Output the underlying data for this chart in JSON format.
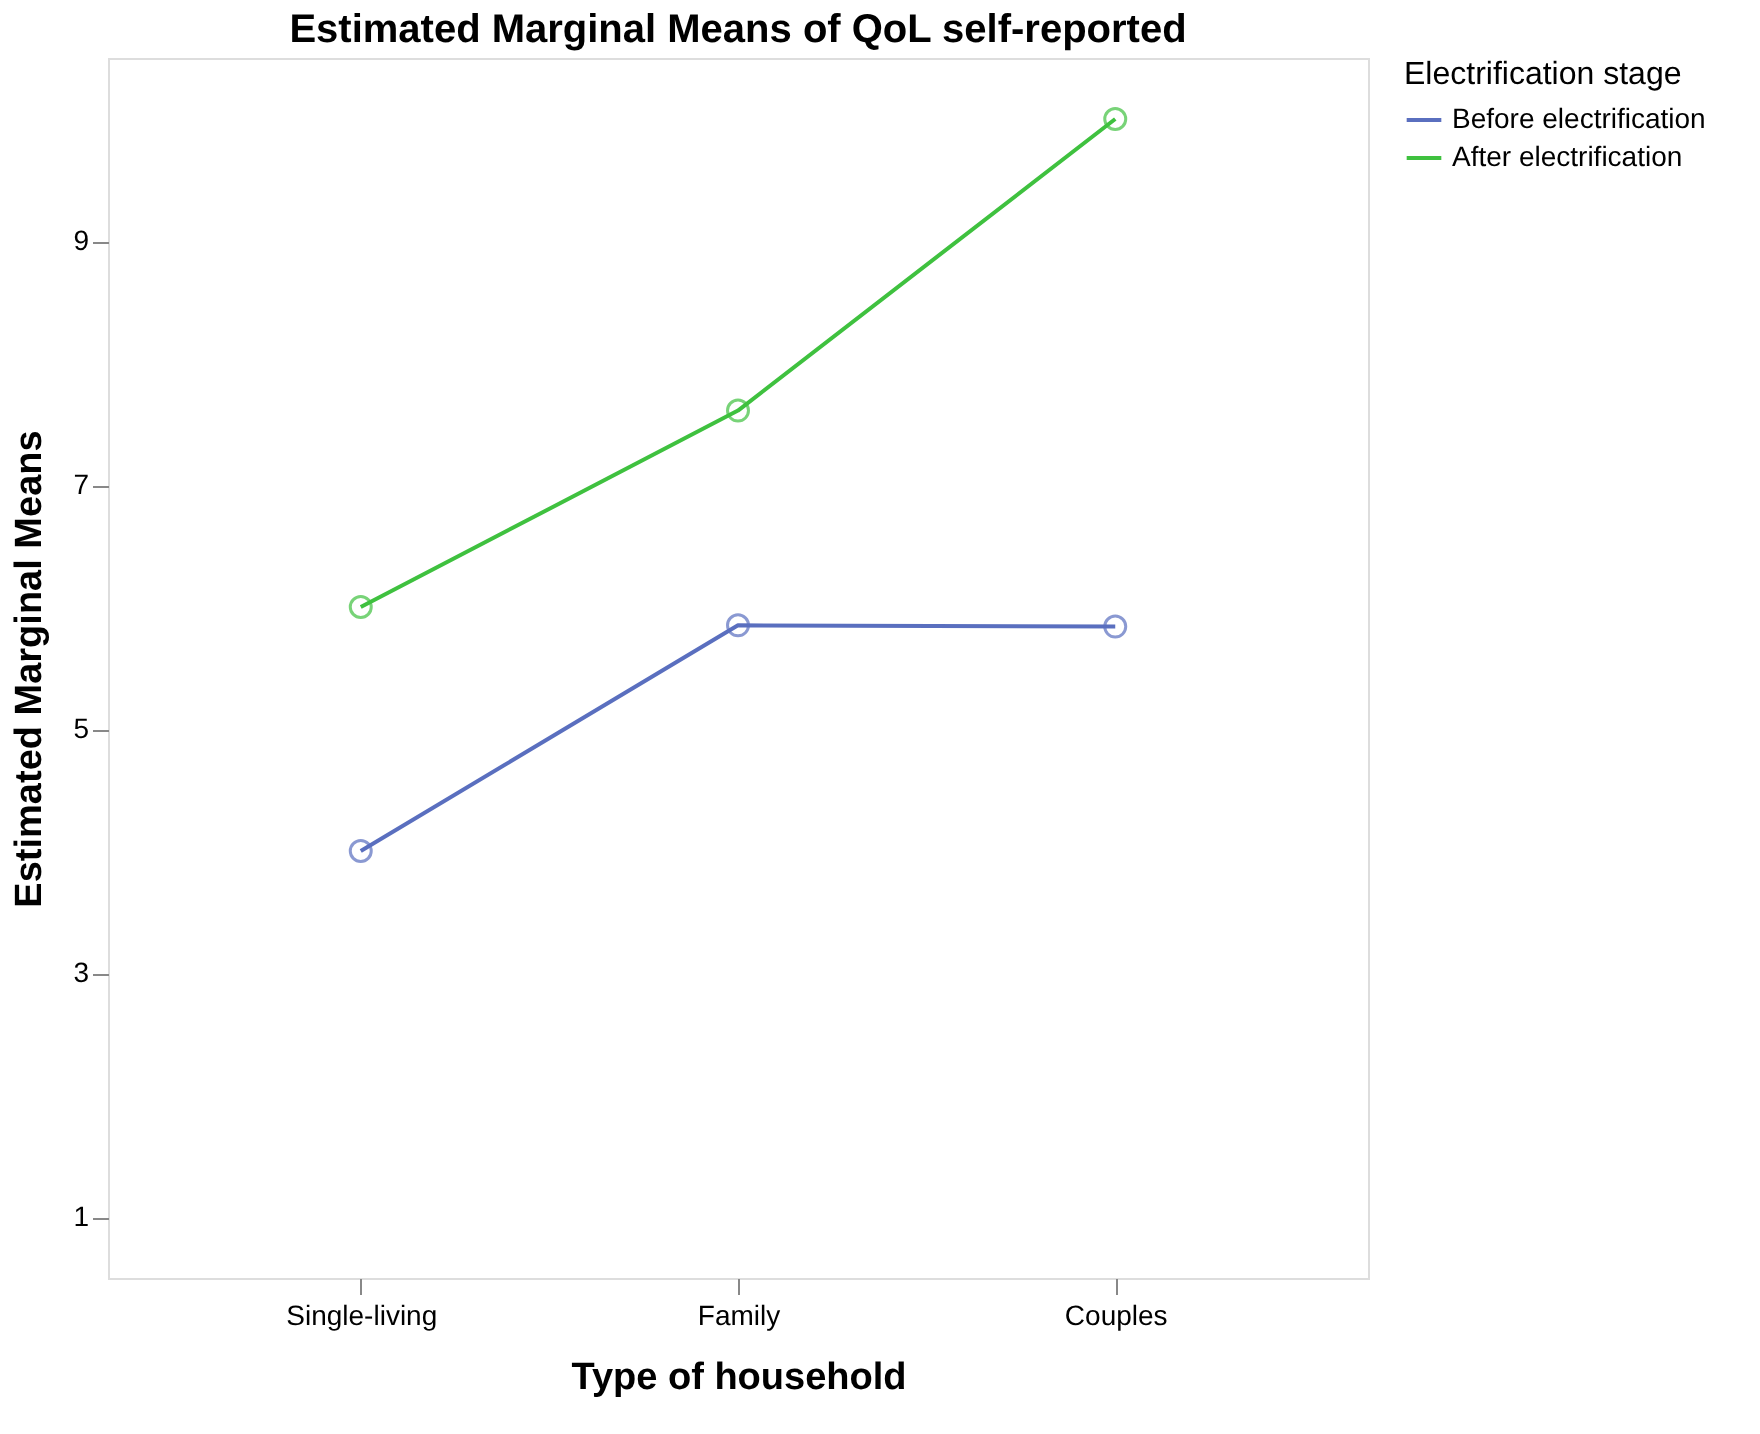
{
  "chart_data": {
    "type": "line",
    "title": "Estimated Marginal Means of QoL self-reported",
    "xlabel": "Type of household",
    "ylabel": "Estimated Marginal Means",
    "legend_title": "Electrification stage",
    "categories": [
      "Single-living",
      "Family",
      "Couples"
    ],
    "series": [
      {
        "name": "Before electrification",
        "color": "#5a6fbf",
        "values": [
          4.0,
          5.85,
          5.84
        ]
      },
      {
        "name": "After electrification",
        "color": "#3fc13f",
        "values": [
          6.0,
          7.61,
          10.0
        ]
      }
    ],
    "ylim": [
      0.5,
      10.5
    ],
    "yticks": [
      1,
      3,
      5,
      7,
      9
    ],
    "grid": false,
    "legend": "top right",
    "marker": "circle",
    "line_style": "solid"
  }
}
